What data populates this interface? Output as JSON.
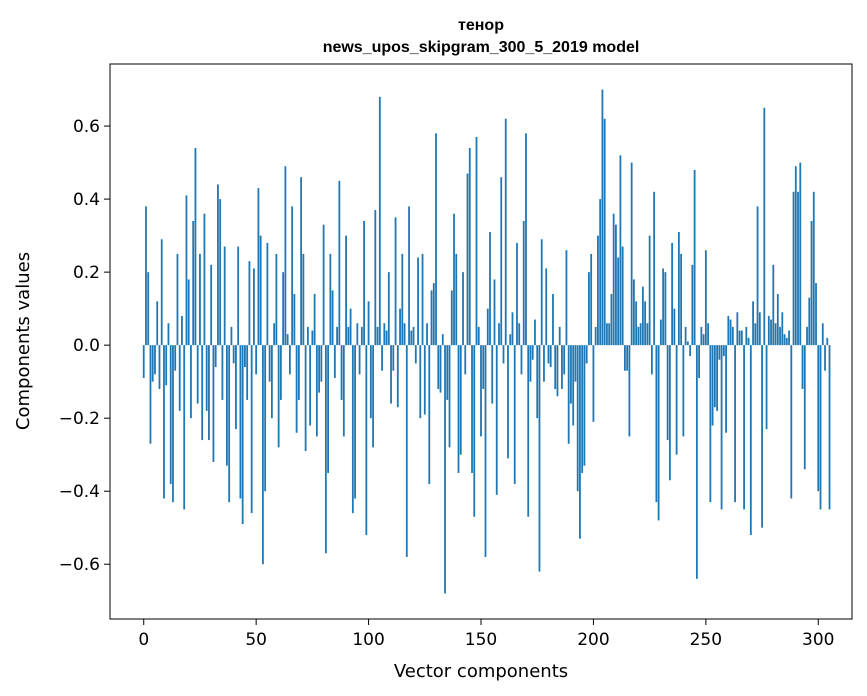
{
  "chart_data": {
    "type": "bar",
    "title": "тенор",
    "subtitle": "news_upos_skipgram_300_5_2019 model",
    "xlabel": "Vector components",
    "ylabel": "Components values",
    "xlim": [
      -15,
      315
    ],
    "ylim": [
      -0.75,
      0.77
    ],
    "xticks": [
      0,
      50,
      100,
      150,
      200,
      250,
      300
    ],
    "xtick_labels": [
      "0",
      "50",
      "100",
      "150",
      "200",
      "250",
      "300"
    ],
    "yticks": [
      -0.6,
      -0.4,
      -0.2,
      0.0,
      0.2,
      0.4,
      0.6
    ],
    "ytick_labels": [
      "−0.6",
      "−0.4",
      "−0.2",
      "0.0",
      "0.2",
      "0.4",
      "0.6"
    ],
    "bar_color": "#1f77b4",
    "grid": false,
    "legend": "none",
    "x_start": 0,
    "values": [
      -0.09,
      0.38,
      0.2,
      -0.27,
      -0.1,
      -0.08,
      0.12,
      -0.12,
      0.29,
      -0.42,
      -0.11,
      0.06,
      -0.38,
      -0.43,
      -0.07,
      0.25,
      -0.18,
      0.08,
      -0.45,
      0.41,
      0.18,
      -0.2,
      0.34,
      0.54,
      -0.16,
      0.25,
      -0.26,
      0.36,
      -0.18,
      -0.26,
      0.22,
      -0.32,
      -0.06,
      0.44,
      0.4,
      -0.15,
      0.27,
      -0.33,
      -0.43,
      0.05,
      -0.05,
      -0.23,
      0.27,
      -0.42,
      -0.49,
      -0.06,
      -0.15,
      0.23,
      -0.46,
      0.21,
      -0.08,
      0.43,
      0.3,
      -0.6,
      -0.4,
      0.28,
      -0.1,
      -0.2,
      0.06,
      0.25,
      -0.28,
      -0.15,
      0.2,
      0.49,
      0.03,
      -0.08,
      0.38,
      0.14,
      -0.24,
      -0.15,
      0.46,
      0.25,
      -0.29,
      0.05,
      -0.22,
      0.04,
      0.14,
      -0.25,
      -0.13,
      -0.1,
      0.33,
      -0.57,
      -0.35,
      0.25,
      0.15,
      -0.09,
      0.05,
      0.45,
      -0.15,
      -0.25,
      0.3,
      0.05,
      0.1,
      -0.46,
      -0.42,
      0.06,
      -0.08,
      0.05,
      0.34,
      -0.52,
      0.12,
      -0.2,
      -0.28,
      0.37,
      0.05,
      0.68,
      -0.07,
      0.06,
      0.04,
      0.2,
      -0.16,
      -0.07,
      0.35,
      -0.17,
      0.1,
      0.25,
      0.06,
      -0.58,
      0.38,
      0.04,
      0.05,
      -0.05,
      0.24,
      -0.2,
      0.25,
      -0.19,
      0.06,
      -0.38,
      0.15,
      0.17,
      0.58,
      -0.12,
      -0.13,
      0.03,
      -0.68,
      -0.15,
      -0.28,
      0.15,
      0.36,
      0.25,
      -0.35,
      -0.3,
      0.2,
      -0.08,
      0.47,
      0.54,
      -0.35,
      -0.47,
      0.57,
      0.05,
      -0.25,
      -0.12,
      -0.58,
      0.1,
      0.31,
      -0.16,
      0.18,
      -0.41,
      0.06,
      0.46,
      -0.05,
      0.62,
      -0.31,
      0.03,
      0.09,
      -0.38,
      0.28,
      0.06,
      -0.08,
      0.34,
      0.58,
      -0.47,
      -0.1,
      -0.04,
      0.07,
      -0.2,
      -0.62,
      0.29,
      -0.1,
      0.21,
      -0.05,
      -0.06,
      0.14,
      -0.12,
      -0.14,
      0.05,
      -0.12,
      -0.08,
      0.26,
      -0.27,
      -0.16,
      -0.22,
      -0.1,
      -0.4,
      -0.53,
      -0.35,
      -0.33,
      -0.05,
      0.2,
      0.25,
      -0.21,
      0.05,
      0.3,
      0.4,
      0.7,
      0.62,
      0.06,
      0.06,
      0.14,
      0.36,
      0.33,
      0.24,
      0.52,
      0.27,
      -0.07,
      -0.07,
      -0.25,
      0.5,
      0.18,
      0.12,
      0.05,
      0.06,
      0.16,
      0.12,
      0.06,
      0.3,
      -0.08,
      0.42,
      -0.43,
      -0.48,
      0.07,
      0.21,
      0.2,
      -0.26,
      -0.37,
      0.28,
      0.1,
      -0.3,
      0.31,
      0.25,
      -0.25,
      0.05,
      0.01,
      -0.03,
      0.22,
      0.48,
      -0.64,
      -0.09,
      0.05,
      0.03,
      0.26,
      0.06,
      -0.43,
      -0.22,
      -0.17,
      -0.18,
      -0.04,
      -0.45,
      -0.03,
      -0.24,
      0.08,
      0.07,
      0.05,
      -0.43,
      0.09,
      0.04,
      0.04,
      -0.45,
      0.05,
      0.02,
      -0.52,
      0.12,
      0.06,
      0.38,
      0.09,
      -0.5,
      0.65,
      -0.23,
      0.08,
      0.07,
      0.22,
      0.06,
      0.14,
      0.05,
      0.09,
      0.03,
      0.02,
      0.04,
      -0.42,
      0.42,
      0.49,
      0.42,
      0.5,
      -0.12,
      -0.34,
      0.05,
      0.13,
      0.34,
      0.42,
      0.17,
      -0.4,
      -0.45,
      0.06,
      -0.07,
      0.02,
      -0.45
    ]
  }
}
